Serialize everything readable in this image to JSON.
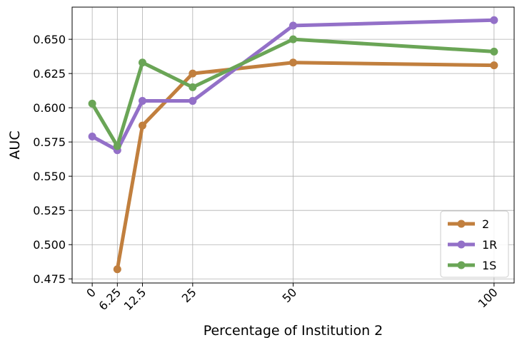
{
  "chart_data": {
    "type": "line",
    "title": "",
    "xlabel": "Percentage of Institution 2",
    "ylabel": "AUC",
    "x_ticks": [
      "0",
      "6.25",
      "12.5",
      "25",
      "50",
      "100"
    ],
    "x_tick_values": [
      0,
      6.25,
      12.5,
      25,
      50,
      100
    ],
    "y_ticks": [
      "0.475",
      "0.500",
      "0.525",
      "0.550",
      "0.575",
      "0.600",
      "0.625",
      "0.650"
    ],
    "y_tick_values": [
      0.475,
      0.5,
      0.525,
      0.55,
      0.575,
      0.6,
      0.625,
      0.65
    ],
    "xlim": [
      -5,
      105
    ],
    "ylim": [
      0.472,
      0.6735
    ],
    "grid": true,
    "legend_position": "bottom-right",
    "series": [
      {
        "name": "2",
        "color": "#c17f3e",
        "x": [
          6.25,
          12.5,
          25,
          50,
          100
        ],
        "y": [
          0.482,
          0.587,
          0.625,
          0.633,
          0.631
        ]
      },
      {
        "name": "1R",
        "color": "#9370c8",
        "x": [
          0,
          6.25,
          12.5,
          25,
          50,
          100
        ],
        "y": [
          0.579,
          0.569,
          0.605,
          0.605,
          0.66,
          0.664
        ]
      },
      {
        "name": "1S",
        "color": "#6aa556",
        "x": [
          0,
          6.25,
          12.5,
          25,
          50,
          100
        ],
        "y": [
          0.603,
          0.572,
          0.633,
          0.615,
          0.65,
          0.641
        ]
      }
    ]
  }
}
